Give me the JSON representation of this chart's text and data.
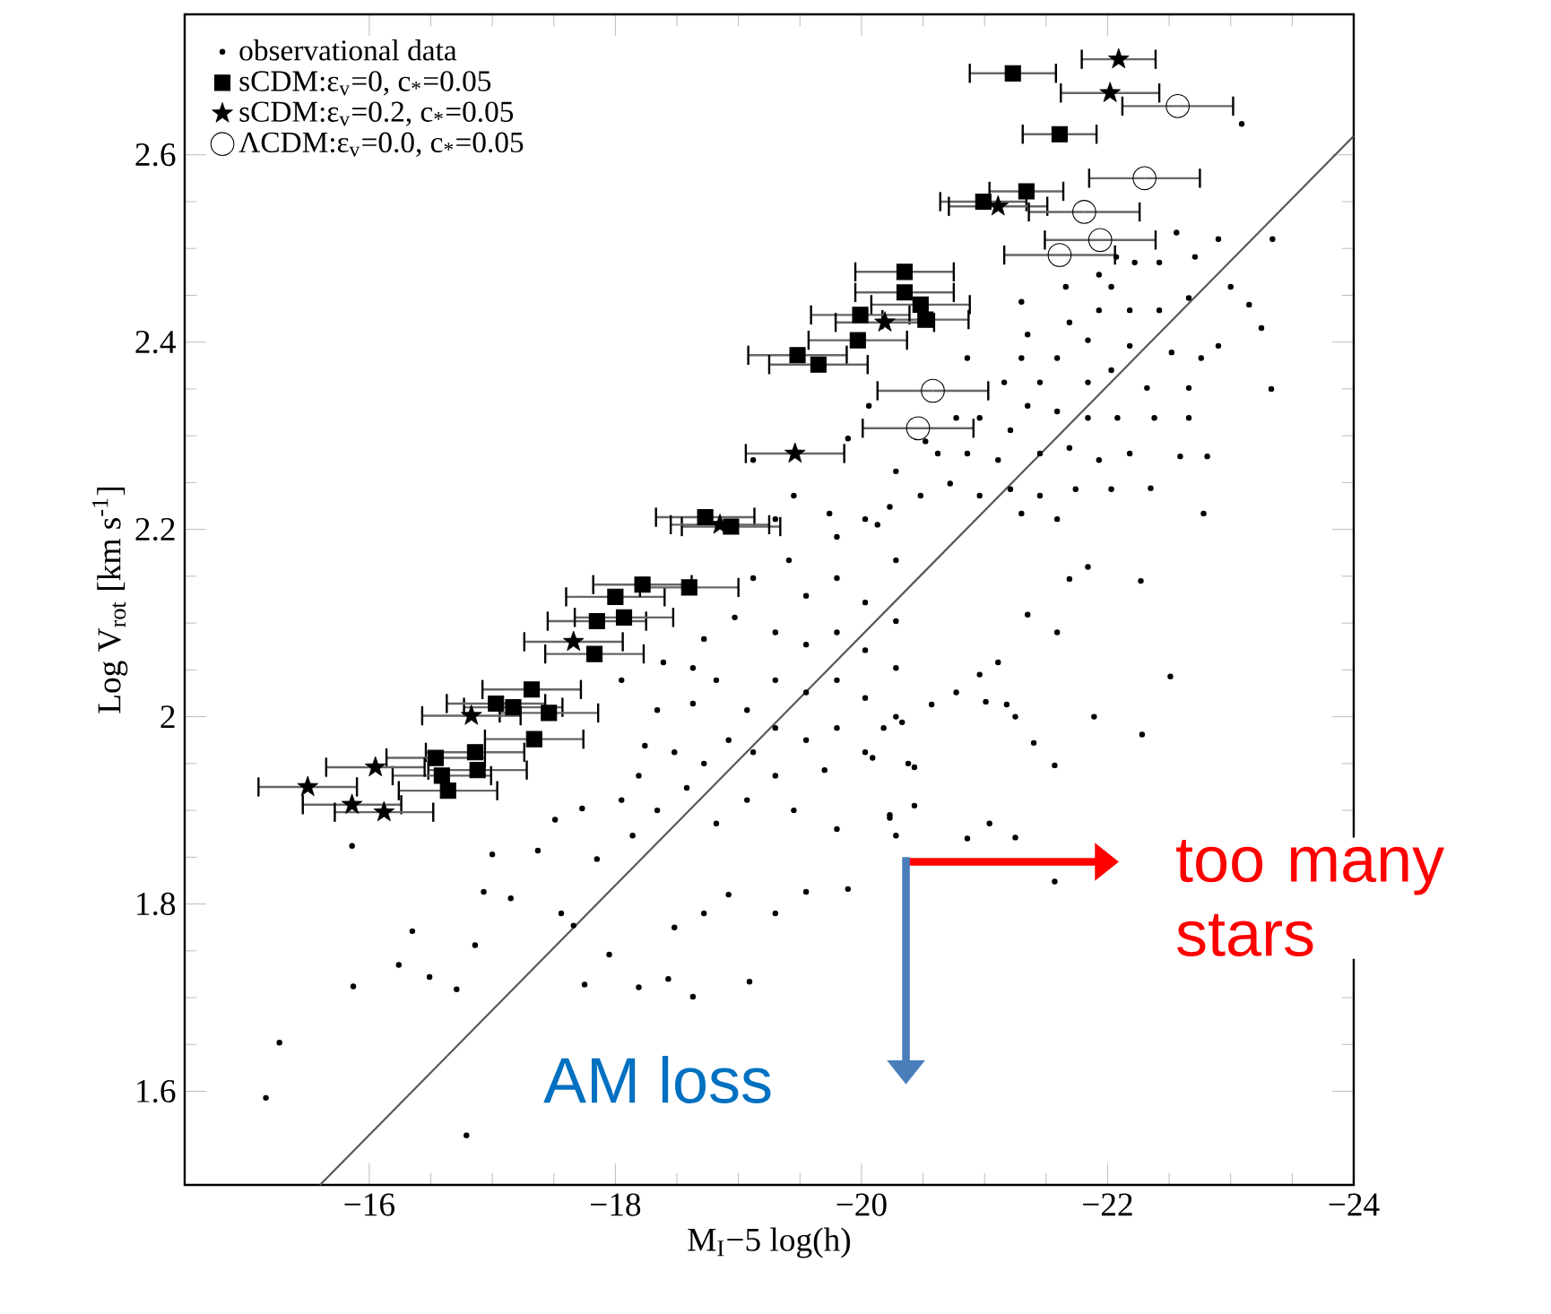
{
  "chart_data": {
    "type": "scatter",
    "xlabel": "M$_{I}$−5 log(h)",
    "ylabel": "Log V$_{rot}$ [km s$^{-1}$]",
    "xlim": [
      -14.5,
      -24
    ],
    "xticks": [
      {
        "value": -16,
        "label": "−16"
      },
      {
        "value": -18,
        "label": "−18"
      },
      {
        "value": -20,
        "label": "−20"
      },
      {
        "value": -22,
        "label": "−22"
      },
      {
        "value": -24,
        "label": "−24"
      }
    ],
    "ylim": [
      1.5,
      2.75
    ],
    "yticks": [
      1.6,
      1.8,
      2,
      2.2,
      2.4,
      2.6
    ],
    "legend": "top left",
    "annotations": [
      "too many stars",
      "AM loss"
    ],
    "series": [
      {
        "name": "observational data",
        "type": "scatter",
        "marker": "circle",
        "color": "#000000",
        "x": [
          -15.27,
          -15.16,
          -16.79,
          -15.87,
          -16.24,
          -16.49,
          -16.71,
          -16.35,
          -16.86,
          -15.86,
          -17.0,
          -16.93,
          -17.15,
          -17.51,
          -17.37,
          -17.56,
          -17.66,
          -17.75,
          -17.95,
          -18.19,
          -18.43,
          -18.63,
          -19.09,
          -18.48,
          -18.72,
          -18.92,
          -19.3,
          -19.55,
          -19.89,
          -19.8,
          -19.7,
          -20.23,
          -20.38,
          -17.85,
          -18.14,
          -18.34,
          -18.05,
          -17.73,
          -18.19,
          -18.58,
          -18.82,
          -19.07,
          -19.3,
          -19.45,
          -19.12,
          -18.92,
          -18.72,
          -18.48,
          -18.24,
          -18.63,
          -18.82,
          -19.07,
          -19.3,
          -19.55,
          -19.8,
          -20.03,
          -19.3,
          -19.55,
          -19.8,
          -20.03,
          -20.28,
          -19.55,
          -19.3,
          -19.8,
          -20.03,
          -20.28,
          -19.55,
          -19.8,
          -20.03,
          -20.28,
          -19.41,
          -19.8,
          -20.28,
          -20.03,
          -19.12,
          -18.97,
          -18.72,
          -18.63,
          -18.34,
          -18.05,
          -18.39,
          -19.3,
          -19.74,
          -20.28,
          -20.43,
          -22.78,
          -22.27,
          -22.51,
          -21.89,
          -22.28,
          -21.4,
          -21.57,
          -21.59,
          -21.25,
          -21.18,
          -21.01,
          -20.77,
          -20.43,
          -20.09,
          -20.23,
          -21.04,
          -21.25,
          -21.57,
          -20.86,
          -21.11,
          -21.35,
          -21.69,
          -21.84,
          -20.96,
          -20.57,
          -20.33,
          -20.18,
          -23.09,
          -22.56,
          -23.34,
          -23.33,
          -23.25,
          -22.35,
          -22.59,
          -22.81,
          -22.66,
          -22.9,
          -23.15,
          -23.0,
          -22.9,
          -22.71,
          -22.42,
          -22.22,
          -22.66,
          -22.42,
          -22.18,
          -22.03,
          -21.93,
          -21.69,
          -21.84,
          -22.18,
          -22.52,
          -22.76,
          -22.66,
          -22.32,
          -22.03,
          -21.84,
          -21.59,
          -21.45,
          -21.3,
          -21.3,
          -21.66,
          -21.93,
          -22.07,
          -22.38,
          -22.08,
          -21.84,
          -21.59,
          -21.35,
          -21.21,
          -20.96,
          -21.11,
          -21.45,
          -21.69,
          -21.93,
          -22.18,
          -22.03,
          -21.74,
          -21.45,
          -21.21,
          -20.96,
          -20.72,
          -20.48,
          -20.23,
          -20.86,
          -20.62,
          -20.77,
          -20.52,
          -21.16,
          -20.86,
          -21.35,
          -21.3,
          -21.59,
          -20.28,
          -20.13,
          -20.06,
          -19.89,
          -19.45,
          -19.12
        ],
        "values": [
          1.652,
          1.593,
          1.553,
          1.712,
          1.735,
          1.722,
          1.709,
          1.771,
          1.756,
          1.862,
          1.853,
          1.813,
          1.806,
          1.89,
          1.857,
          1.79,
          1.777,
          1.714,
          1.746,
          1.711,
          1.72,
          1.701,
          1.717,
          1.775,
          1.79,
          1.81,
          1.79,
          1.813,
          1.816,
          1.88,
          1.943,
          1.892,
          1.95,
          1.848,
          1.873,
          1.9,
          1.911,
          1.902,
          1.937,
          1.924,
          1.886,
          1.911,
          1.937,
          1.9,
          1.962,
          1.975,
          1.95,
          1.962,
          1.969,
          2.014,
          2.039,
          2.007,
          1.988,
          1.975,
          1.988,
          1.962,
          2.039,
          2.026,
          2.039,
          2.02,
          2.0,
          2.077,
          2.09,
          2.09,
          2.071,
          2.052,
          2.129,
          2.148,
          2.122,
          2.102,
          2.167,
          2.192,
          2.167,
          2.211,
          2.148,
          2.106,
          2.083,
          2.052,
          2.007,
          2.039,
          2.058,
          2.211,
          2.217,
          1.873,
          1.905,
          2.217,
          2.145,
          2.043,
          2.0,
          1.981,
          1.972,
          1.948,
          2.09,
          2.0,
          2.013,
          2.016,
          2.026,
          1.946,
          1.956,
          1.895,
          1.886,
          1.871,
          1.824,
          1.87,
          2.058,
          2.109,
          2.147,
          2.16,
          2.045,
          2.013,
          1.994,
          1.988,
          2.633,
          2.517,
          2.51,
          2.35,
          2.415,
          2.244,
          2.278,
          2.278,
          2.319,
          2.396,
          2.44,
          2.459,
          2.51,
          2.491,
          2.485,
          2.485,
          2.447,
          2.434,
          2.434,
          2.459,
          2.434,
          2.421,
          2.402,
          2.396,
          2.389,
          2.383,
          2.351,
          2.351,
          2.37,
          2.357,
          2.383,
          2.357,
          2.383,
          2.443,
          2.459,
          2.472,
          2.491,
          2.319,
          2.319,
          2.319,
          2.326,
          2.332,
          2.306,
          2.319,
          2.274,
          2.281,
          2.287,
          2.274,
          2.281,
          2.243,
          2.243,
          2.236,
          2.243,
          2.236,
          2.249,
          2.236,
          2.224,
          2.281,
          2.281,
          2.319,
          2.294,
          2.357,
          2.383,
          2.408,
          2.217,
          2.211,
          2.262,
          2.205,
          2.332,
          2.297,
          2.236,
          2.274
        ]
      },
      {
        "name": "sCDM:ε$_{v}$=0, c$_{*}$=0.05",
        "type": "scatter",
        "marker": "square",
        "color": "#000000",
        "x": [
          -21.23,
          -21.61,
          -21.34,
          -20.99,
          -20.35,
          -20.35,
          -20.52,
          -19.99,
          -19.97,
          -19.48,
          -19.65,
          -20.48,
          -18.73,
          -18.94,
          -18.22,
          -18.0,
          -17.85,
          -18.07,
          -17.83,
          -18.6,
          -17.32,
          -17.17,
          -17.03,
          -17.46,
          -17.34,
          -16.86,
          -16.88,
          -16.54,
          -16.59,
          -16.64
        ],
        "values": [
          2.687,
          2.622,
          2.561,
          2.55,
          2.475,
          2.453,
          2.424,
          2.429,
          2.402,
          2.386,
          2.376,
          2.44,
          2.213,
          2.203,
          2.141,
          2.128,
          2.102,
          2.106,
          2.067,
          2.138,
          2.029,
          2.01,
          2.014,
          2.004,
          1.976,
          1.962,
          1.943,
          1.956,
          1.937,
          1.921
        ],
        "xerrors": [
          0.35,
          0.3,
          0.3,
          0.35,
          0.4,
          0.4,
          0.35,
          0.4,
          0.4,
          0.4,
          0.4,
          0.4,
          0.4,
          0.4,
          0.4,
          0.4,
          0.4,
          0.4,
          0.4,
          0.4,
          0.4,
          0.4,
          0.4,
          0.4,
          0.4,
          0.4,
          0.4,
          0.4,
          0.4,
          0.4
        ]
      },
      {
        "name": "sCDM:ε$_{v}$=0.2, c$_{*}$=0.05",
        "type": "scatter",
        "marker": "star",
        "color": "#000000",
        "x": [
          -22.09,
          -22.02,
          -21.11,
          -19.46,
          -20.19,
          -16.83,
          -16.05,
          -15.5,
          -15.86,
          -16.12,
          -17.66,
          -18.85
        ],
        "values": [
          2.702,
          2.666,
          2.545,
          2.281,
          2.421,
          2.001,
          1.946,
          1.925,
          1.906,
          1.898,
          2.08,
          2.205
        ],
        "xerrors": [
          0.3,
          0.4,
          0.4,
          0.4,
          0.4,
          0.4,
          0.4,
          0.4,
          0.4,
          0.4,
          0.4,
          0.4
        ]
      },
      {
        "name": "ΛCDM:ε$_{v}$=0.0, c$_{*}$=0.05",
        "type": "scatter",
        "marker": "circle",
        "color": "#000000",
        "x": [
          -22.57,
          -22.3,
          -21.81,
          -21.94,
          -21.61,
          -20.58,
          -20.46
        ],
        "values": [
          2.652,
          2.575,
          2.539,
          2.509,
          2.493,
          2.348,
          2.308
        ],
        "xerrors": [
          0.45,
          0.45,
          0.45,
          0.45,
          0.45,
          0.45,
          0.45
        ]
      },
      {
        "type": "line",
        "color": "#555555",
        "x": [
          -15.6,
          -24
        ],
        "values": [
          1.5,
          2.62
        ]
      }
    ]
  }
}
